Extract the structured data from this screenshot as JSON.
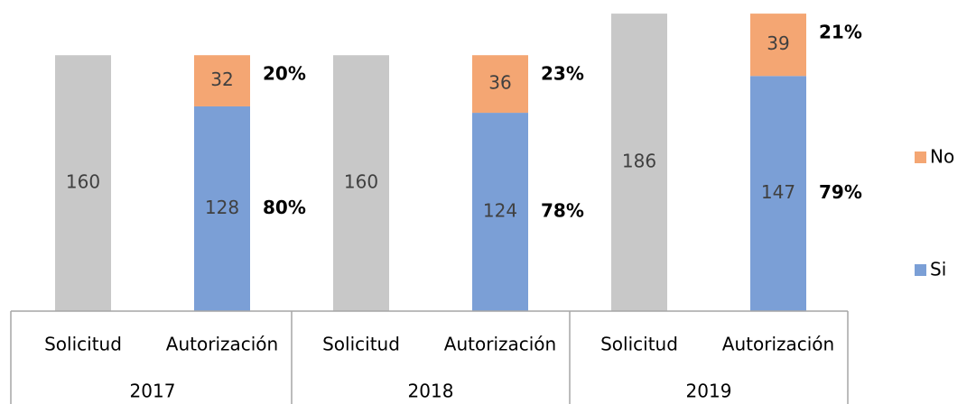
{
  "chart_data": {
    "type": "stacked_bar",
    "groups": [
      "2017",
      "2018",
      "2019"
    ],
    "categories": [
      "Solicitud",
      "Autorización",
      "Solicitud",
      "Autorización",
      "Solicitud",
      "Autorización"
    ],
    "series": [
      {
        "color": "#c8c8c8",
        "values": [
          160,
          null,
          160,
          null,
          186,
          null
        ]
      },
      {
        "name": "Si",
        "color": "#7b9fd6",
        "values": [
          null,
          128,
          null,
          124,
          null,
          147
        ],
        "percent_labels": [
          null,
          "80%",
          null,
          "78%",
          null,
          "79%"
        ]
      },
      {
        "name": "No",
        "color": "#f4a673",
        "values": [
          null,
          32,
          null,
          36,
          null,
          39
        ],
        "percent_labels": [
          null,
          "20%",
          null,
          "23%",
          null,
          "21%"
        ]
      }
    ],
    "ylim": [
      0,
      190
    ]
  }
}
